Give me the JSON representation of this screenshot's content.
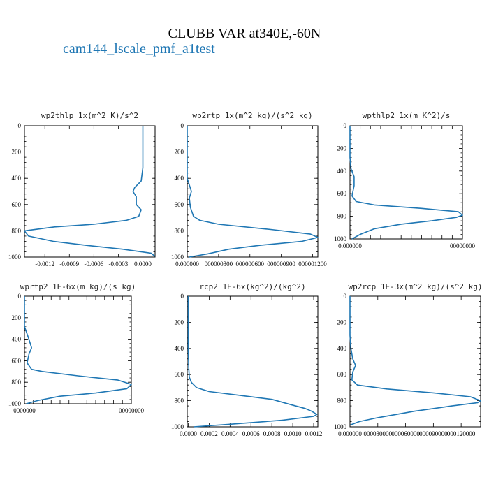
{
  "figure": {
    "title": "CLUBB VAR at340E,-60N",
    "legend": [
      {
        "label": "cam144_lscale_pmf_a1test",
        "color": "#1f77b4"
      }
    ]
  },
  "chart_data": [
    {
      "type": "line",
      "title": "wp2thlp   1x(m^2 K)/s^2",
      "xlim": [
        -0.00145,
        0.00015
      ],
      "ylim": [
        1000,
        0
      ],
      "x_ticks": [
        -0.0012,
        -0.0009,
        -0.0006,
        -0.0003,
        0.0
      ],
      "x_tick_labels": [
        "-0.0012",
        "-0.0009",
        "-0.0006",
        "-0.0003",
        "0.0000"
      ],
      "y_ticks": [
        0,
        200,
        400,
        600,
        800,
        1000
      ],
      "y_tick_labels": [
        "0",
        "200",
        "400",
        "600",
        "800",
        "1000"
      ],
      "series": [
        {
          "color": "#1f77b4",
          "x": [
            0.0,
            0.0,
            0.0,
            -2e-05,
            -0.0001,
            -0.00012,
            -8e-05,
            -8e-05,
            -2e-05,
            -5e-05,
            -0.0002,
            -0.0006,
            -0.00108,
            -0.00145,
            -0.0014,
            -0.0011,
            -0.0007,
            -0.00025,
            0.0001,
            0.00015
          ],
          "y": [
            0,
            200,
            320,
            420,
            470,
            500,
            540,
            600,
            640,
            690,
            720,
            750,
            770,
            800,
            840,
            880,
            910,
            940,
            970,
            995
          ]
        }
      ]
    },
    {
      "type": "line",
      "title": "wp2rtp   1x(m^2 kg)/(s^2 kg)",
      "xlim": [
        0,
        0.000125
      ],
      "ylim": [
        1000,
        0
      ],
      "x_ticks": [
        0,
        3e-05,
        6e-05,
        9e-05,
        0.00012
      ],
      "x_tick_labels": [
        "0.000000",
        "000000300",
        "000000600",
        "000000900",
        "000001200"
      ],
      "y_ticks": [
        0,
        200,
        400,
        600,
        800,
        1000
      ],
      "y_tick_labels": [
        "0",
        "200",
        "400",
        "600",
        "800",
        "1000"
      ],
      "series": [
        {
          "color": "#1f77b4",
          "x": [
            0,
            0,
            0,
            2e-06,
            4e-06,
            2e-06,
            3e-06,
            6e-06,
            1.2e-05,
            3e-05,
            8e-05,
            0.000118,
            0.000125,
            0.00011,
            7e-05,
            4e-05,
            2e-05,
            2e-06
          ],
          "y": [
            0,
            200,
            400,
            450,
            500,
            550,
            620,
            690,
            720,
            750,
            790,
            825,
            850,
            880,
            910,
            940,
            975,
            1000
          ]
        }
      ]
    },
    {
      "type": "line",
      "title": "wpthlp2   1x(m K^2)/s",
      "xlim": [
        0,
        5.5e-06
      ],
      "ylim": [
        1000,
        0
      ],
      "x_ticks": [
        0,
        5e-07,
        1e-06,
        1.5e-06,
        2e-06,
        2.5e-06,
        3e-06,
        3.5e-06,
        4e-06,
        4.5e-06,
        5e-06,
        5.5e-06
      ],
      "x_tick_labels": [
        "0.000000",
        "",
        "",
        "",
        "",
        "",
        "",
        "",
        "",
        "",
        "",
        "00000000"
      ],
      "y_ticks": [
        0,
        200,
        400,
        600,
        800,
        1000
      ],
      "y_tick_labels": [
        "0",
        "200",
        "400",
        "600",
        "800",
        "1000"
      ],
      "series": [
        {
          "color": "#1f77b4",
          "x": [
            0,
            0,
            5e-08,
            2e-07,
            2e-07,
            1e-07,
            3e-07,
            1.2e-06,
            3.5e-06,
            5.3e-06,
            5.5e-06,
            5.2e-06,
            4e-06,
            2.5e-06,
            1.2e-06,
            5e-07,
            1e-07
          ],
          "y": [
            0,
            280,
            380,
            450,
            530,
            620,
            670,
            700,
            730,
            760,
            790,
            810,
            840,
            870,
            910,
            960,
            1000
          ]
        }
      ]
    },
    {
      "type": "line",
      "title": "wprtp2   1E-6x(m kg)/(s kg)",
      "xlim": [
        0,
        1.2e-05
      ],
      "ylim": [
        1000,
        0
      ],
      "x_ticks": [
        0,
        1e-06,
        2e-06,
        3e-06,
        4e-06,
        5e-06,
        6e-06,
        7e-06,
        8e-06,
        9e-06,
        1e-05,
        1.1e-05,
        1.2e-05
      ],
      "x_tick_labels": [
        "0000000",
        "",
        "",
        "",
        "",
        "",
        "",
        "",
        "",
        "",
        "",
        "",
        "00000000"
      ],
      "y_ticks": [
        0,
        200,
        400,
        600,
        800,
        1000
      ],
      "y_tick_labels": [
        "0",
        "200",
        "400",
        "600",
        "800",
        "1000"
      ],
      "series": [
        {
          "color": "#1f77b4",
          "x": [
            0,
            0,
            5e-07,
            8e-07,
            5e-07,
            3e-07,
            8e-07,
            2e-06,
            6e-06,
            1.05e-05,
            1.2e-05,
            1.15e-05,
            8e-06,
            4e-06,
            1.5e-06,
            2e-07
          ],
          "y": [
            0,
            280,
            400,
            480,
            540,
            620,
            680,
            700,
            740,
            780,
            820,
            860,
            900,
            930,
            970,
            1000
          ]
        }
      ]
    },
    {
      "type": "line",
      "title": "rcp2   1E-6x(kg^2)/(kg^2)",
      "xlim": [
        -1e-05,
        0.00124
      ],
      "ylim": [
        1000,
        0
      ],
      "x_ticks": [
        0.0,
        0.0002,
        0.0004,
        0.0006,
        0.0008,
        0.001,
        0.0012
      ],
      "x_tick_labels": [
        "0.0000",
        "0.0002",
        "0.0004",
        "0.0006",
        "0.0008",
        "0.0010",
        "0.0012"
      ],
      "y_ticks": [
        0,
        200,
        400,
        600,
        800,
        1000
      ],
      "y_tick_labels": [
        "0",
        "200",
        "400",
        "600",
        "800",
        "1000"
      ],
      "series": [
        {
          "color": "#1f77b4",
          "x": [
            0,
            0,
            5e-06,
            1e-05,
            3e-05,
            8e-05,
            0.0002,
            0.0005,
            0.0008,
            0.00098,
            0.00112,
            0.00118,
            0.00123,
            0.0012,
            0.0009,
            0.0004,
            5e-05
          ],
          "y": [
            0,
            400,
            550,
            620,
            660,
            700,
            730,
            760,
            790,
            830,
            860,
            880,
            905,
            920,
            950,
            980,
            1000
          ]
        }
      ]
    },
    {
      "type": "line",
      "title": "wp2rcp   1E-3x(m^2 kg)/(s^2 kg)",
      "xlim": [
        0,
        0.000141
      ],
      "ylim": [
        1000,
        0
      ],
      "x_ticks": [
        0,
        3e-05,
        6e-05,
        9e-05,
        0.00012
      ],
      "x_tick_labels": [
        "0.000000",
        "000030000",
        "000060000",
        "000090000",
        "000120000"
      ],
      "y_ticks": [
        0,
        200,
        400,
        600,
        800,
        1000
      ],
      "y_tick_labels": [
        "0",
        "200",
        "400",
        "600",
        "800",
        "1000"
      ],
      "series": [
        {
          "color": "#1f77b4",
          "x": [
            0,
            0,
            1e-06,
            3e-06,
            6e-06,
            3e-06,
            2e-06,
            8e-06,
            4e-05,
            9e-05,
            0.00013,
            0.000141,
            0.000138,
            0.00011,
            7e-05,
            3e-05,
            1e-05,
            5e-07
          ],
          "y": [
            0,
            300,
            400,
            480,
            530,
            580,
            640,
            680,
            710,
            740,
            770,
            800,
            815,
            840,
            880,
            930,
            960,
            985
          ]
        }
      ]
    }
  ]
}
